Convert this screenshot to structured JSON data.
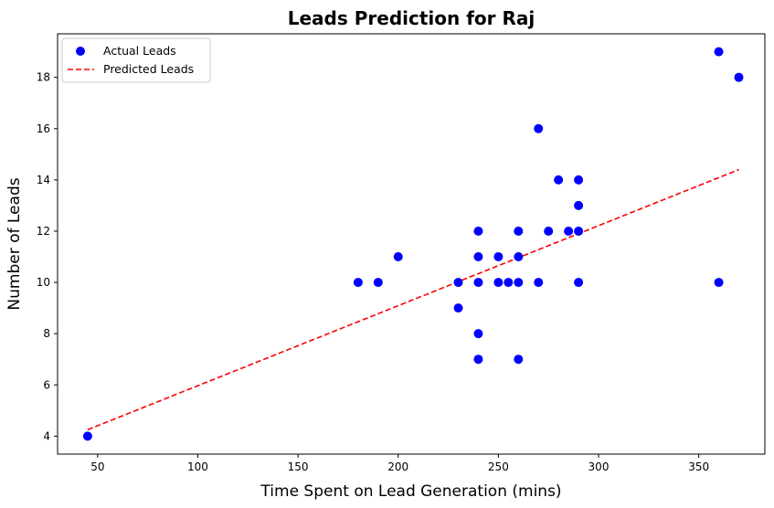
{
  "chart_data": {
    "type": "scatter",
    "title": "Leads Prediction for Raj",
    "xlabel": "Time Spent on Lead Generation (mins)",
    "ylabel": "Number of Leads",
    "xlim": [
      30,
      383
    ],
    "ylim": [
      3.3,
      19.7
    ],
    "xticks": [
      50,
      100,
      150,
      200,
      250,
      300,
      350
    ],
    "yticks": [
      4,
      6,
      8,
      10,
      12,
      14,
      16,
      18
    ],
    "grid": false,
    "legend_position": "top-left",
    "series": [
      {
        "name": "Actual Leads",
        "kind": "scatter",
        "color": "#0000ff",
        "points": [
          [
            45,
            4
          ],
          [
            180,
            10
          ],
          [
            190,
            10
          ],
          [
            200,
            11
          ],
          [
            230,
            10
          ],
          [
            230,
            9
          ],
          [
            240,
            12
          ],
          [
            240,
            11
          ],
          [
            240,
            10
          ],
          [
            240,
            8
          ],
          [
            240,
            7
          ],
          [
            250,
            11
          ],
          [
            250,
            10
          ],
          [
            255,
            10
          ],
          [
            260,
            12
          ],
          [
            260,
            11
          ],
          [
            260,
            10
          ],
          [
            260,
            7
          ],
          [
            270,
            16
          ],
          [
            270,
            10
          ],
          [
            275,
            12
          ],
          [
            280,
            14
          ],
          [
            285,
            12
          ],
          [
            290,
            14
          ],
          [
            290,
            13
          ],
          [
            290,
            12
          ],
          [
            290,
            10
          ],
          [
            360,
            19
          ],
          [
            360,
            10
          ],
          [
            370,
            18
          ]
        ]
      },
      {
        "name": "Predicted Leads",
        "kind": "line",
        "style": "dashed",
        "color": "#ff0000",
        "points": [
          [
            45,
            4.25
          ],
          [
            370,
            14.4
          ]
        ]
      }
    ]
  }
}
